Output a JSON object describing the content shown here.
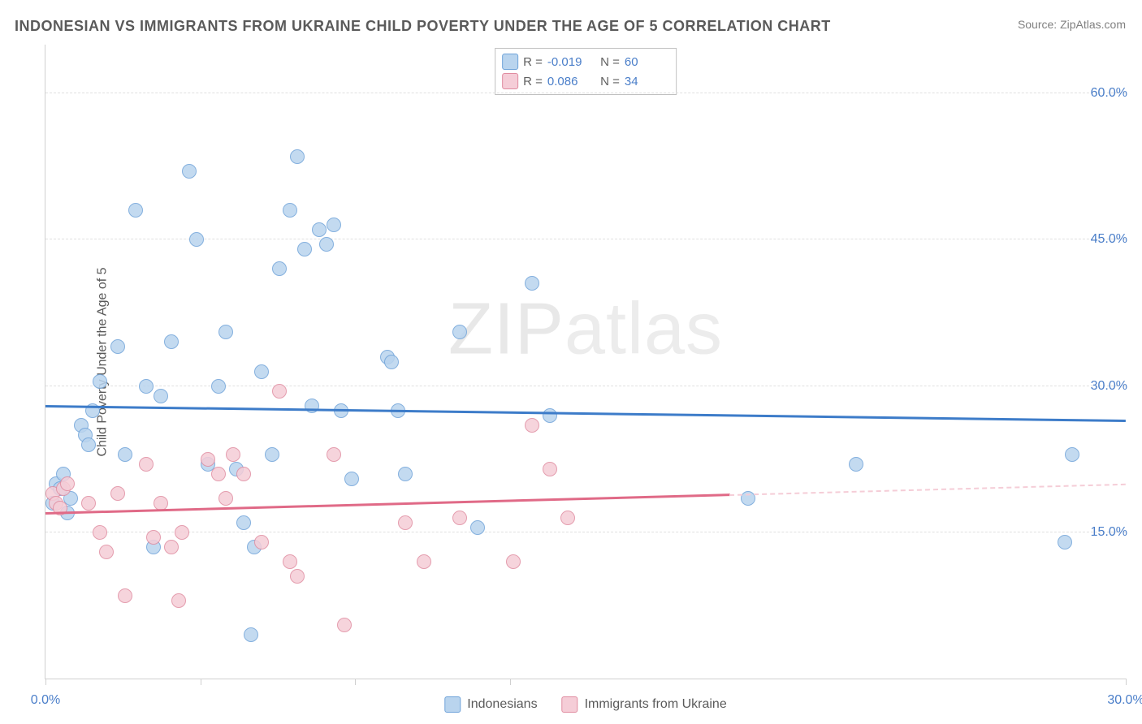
{
  "title": "INDONESIAN VS IMMIGRANTS FROM UKRAINE CHILD POVERTY UNDER THE AGE OF 5 CORRELATION CHART",
  "source": "Source: ZipAtlas.com",
  "watermark": "ZIPatlas",
  "y_axis_label": "Child Poverty Under the Age of 5",
  "chart": {
    "type": "scatter",
    "xlim": [
      0,
      30
    ],
    "ylim": [
      0,
      65
    ],
    "y_ticks": [
      15,
      30,
      45,
      60
    ],
    "y_tick_labels": [
      "15.0%",
      "30.0%",
      "45.0%",
      "60.0%"
    ],
    "x_ticks": [
      0,
      4.3,
      8.6,
      12.9,
      30
    ],
    "x_tick_labels": {
      "0": "0.0%",
      "30": "30.0%"
    },
    "background_color": "#ffffff",
    "grid_color": "#e0e0e0",
    "axis_color": "#d0d0d0",
    "label_color": "#4a7ec9",
    "marker_radius": 9,
    "marker_stroke_width": 1.5,
    "series": [
      {
        "name": "Indonesians",
        "fill": "#b9d4ee",
        "stroke": "#6fa3d9",
        "line_color": "#3d7cc9",
        "R": "-0.019",
        "N": "60",
        "trend": {
          "x1": 0,
          "y1": 27.8,
          "x2": 30,
          "y2": 26.3,
          "solid_until_x": 30
        },
        "points": [
          [
            0.2,
            18
          ],
          [
            0.3,
            20
          ],
          [
            0.4,
            19.5
          ],
          [
            0.5,
            21
          ],
          [
            0.6,
            17
          ],
          [
            0.7,
            18.5
          ],
          [
            1.0,
            26
          ],
          [
            1.1,
            25
          ],
          [
            1.2,
            24
          ],
          [
            1.3,
            27.5
          ],
          [
            1.5,
            30.5
          ],
          [
            2.0,
            34
          ],
          [
            2.2,
            23
          ],
          [
            2.5,
            48
          ],
          [
            2.8,
            30
          ],
          [
            3.0,
            13.5
          ],
          [
            3.2,
            29
          ],
          [
            3.5,
            34.5
          ],
          [
            4.0,
            52
          ],
          [
            4.2,
            45
          ],
          [
            4.5,
            22
          ],
          [
            4.8,
            30
          ],
          [
            5.0,
            35.5
          ],
          [
            5.3,
            21.5
          ],
          [
            5.5,
            16
          ],
          [
            5.7,
            4.5
          ],
          [
            5.8,
            13.5
          ],
          [
            6.0,
            31.5
          ],
          [
            6.3,
            23
          ],
          [
            6.5,
            42
          ],
          [
            6.8,
            48
          ],
          [
            7.0,
            53.5
          ],
          [
            7.2,
            44
          ],
          [
            7.4,
            28
          ],
          [
            7.6,
            46
          ],
          [
            7.8,
            44.5
          ],
          [
            8.0,
            46.5
          ],
          [
            8.2,
            27.5
          ],
          [
            8.5,
            20.5
          ],
          [
            9.5,
            33
          ],
          [
            9.6,
            32.5
          ],
          [
            9.8,
            27.5
          ],
          [
            10.0,
            21
          ],
          [
            11.5,
            35.5
          ],
          [
            12.0,
            15.5
          ],
          [
            13.5,
            40.5
          ],
          [
            14.0,
            27
          ],
          [
            19.5,
            18.5
          ],
          [
            22.5,
            22
          ],
          [
            28.5,
            23
          ],
          [
            28.3,
            14
          ]
        ]
      },
      {
        "name": "Immigrants from Ukraine",
        "fill": "#f5cdd7",
        "stroke": "#e08ca0",
        "line_color": "#e06a87",
        "R": "0.086",
        "N": "34",
        "trend": {
          "x1": 0,
          "y1": 16.8,
          "x2": 30,
          "y2": 19.8,
          "solid_until_x": 19
        },
        "points": [
          [
            0.2,
            19
          ],
          [
            0.3,
            18
          ],
          [
            0.4,
            17.5
          ],
          [
            0.5,
            19.5
          ],
          [
            0.6,
            20
          ],
          [
            1.2,
            18
          ],
          [
            1.5,
            15
          ],
          [
            1.7,
            13
          ],
          [
            2.0,
            19
          ],
          [
            2.2,
            8.5
          ],
          [
            2.8,
            22
          ],
          [
            3.0,
            14.5
          ],
          [
            3.2,
            18
          ],
          [
            3.5,
            13.5
          ],
          [
            3.7,
            8
          ],
          [
            3.8,
            15
          ],
          [
            4.5,
            22.5
          ],
          [
            4.8,
            21
          ],
          [
            5.0,
            18.5
          ],
          [
            5.2,
            23
          ],
          [
            5.5,
            21
          ],
          [
            6.0,
            14
          ],
          [
            6.5,
            29.5
          ],
          [
            6.8,
            12
          ],
          [
            7.0,
            10.5
          ],
          [
            8.0,
            23
          ],
          [
            8.3,
            5.5
          ],
          [
            10.0,
            16
          ],
          [
            10.5,
            12
          ],
          [
            11.5,
            16.5
          ],
          [
            13.0,
            12
          ],
          [
            13.5,
            26
          ],
          [
            14.0,
            21.5
          ],
          [
            14.5,
            16.5
          ]
        ]
      }
    ]
  }
}
